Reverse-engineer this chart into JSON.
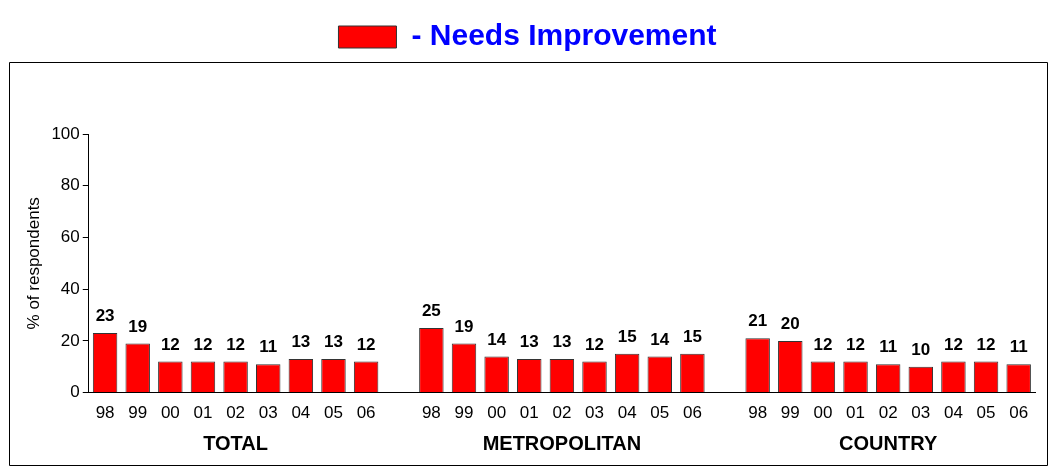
{
  "chart_data": {
    "type": "bar",
    "ylabel": "% of respondents",
    "categories": [
      "98",
      "99",
      "00",
      "01",
      "02",
      "03",
      "04",
      "05",
      "06",
      null,
      "98",
      "99",
      "00",
      "01",
      "02",
      "03",
      "04",
      "05",
      "06",
      null,
      "98",
      "99",
      "00",
      "01",
      "02",
      "03",
      "04",
      "05",
      "06"
    ],
    "series": [
      {
        "name": "- Needs Improvement",
        "color": "#ff0000",
        "values": [
          23,
          19,
          12,
          12,
          12,
          11,
          13,
          13,
          12,
          null,
          25,
          19,
          14,
          13,
          13,
          12,
          15,
          14,
          15,
          null,
          21,
          20,
          12,
          12,
          11,
          10,
          12,
          12,
          11
        ]
      }
    ],
    "ylim": [
      0,
      100
    ],
    "yticks": [
      0,
      20,
      40,
      60,
      80,
      100
    ],
    "grid": false,
    "legend": "top",
    "data_labels": true,
    "annotations": [
      "TOTAL",
      "METROPOLITAN",
      "COUNTRY"
    ]
  }
}
